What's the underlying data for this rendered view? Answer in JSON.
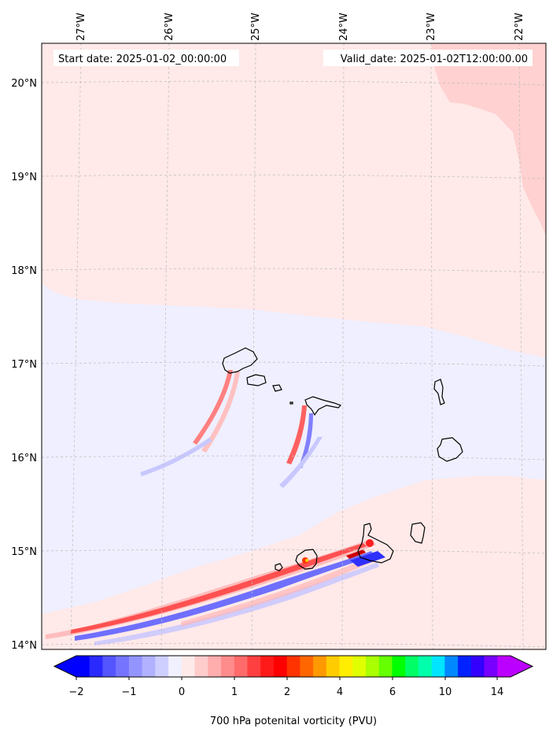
{
  "header": {
    "start_date": "Start date: 2025-01-02_00:00:00",
    "valid_date": "Valid_date: 2025-01-02T12:00:00.00"
  },
  "axes": {
    "lon_labels": [
      "27°W",
      "26°W",
      "25°W",
      "24°W",
      "23°W",
      "22°W"
    ],
    "lat_labels": [
      "20°N",
      "19°N",
      "18°N",
      "17°N",
      "16°N",
      "15°N",
      "14°N"
    ]
  },
  "colorbar": {
    "label": "700 hPa potenital vorticity (PVU)",
    "tick_labels": [
      "−2",
      "−1",
      "0",
      "1",
      "2",
      "4",
      "6",
      "10",
      "14"
    ],
    "colors": [
      "#0000ff",
      "#2a2aff",
      "#5555ff",
      "#7474ff",
      "#9494ff",
      "#b1b1ff",
      "#cfcfff",
      "#f0f0ff",
      "#ffeaea",
      "#ffcccc",
      "#ffadad",
      "#ff8c8c",
      "#ff6b6b",
      "#ff4040",
      "#ff1a1a",
      "#ff0000",
      "#ff3300",
      "#ff6600",
      "#ff9900",
      "#ffcc00",
      "#ffee00",
      "#e0ff00",
      "#aaff00",
      "#66ff00",
      "#00ff00",
      "#00ff66",
      "#00ffaa",
      "#00e5ff",
      "#0088ff",
      "#0022ff",
      "#3300ff",
      "#7700ff",
      "#bb00ff"
    ]
  },
  "colors": {
    "background_field": "#ffe9e9",
    "low_pv_field": "#efefff",
    "coast": "#000000"
  }
}
